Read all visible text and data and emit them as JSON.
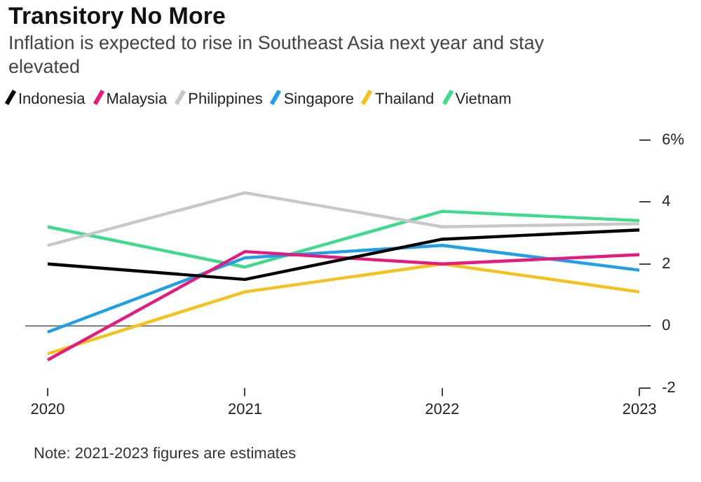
{
  "chart_data": {
    "type": "line",
    "title": "Transitory No More",
    "subtitle": "Inflation is expected to rise in Southeast Asia next year and stay elevated",
    "categories": [
      "2020",
      "2021",
      "2022",
      "2023"
    ],
    "series": [
      {
        "name": "Indonesia",
        "color": "#000000",
        "values": [
          2.0,
          1.5,
          2.8,
          3.1
        ]
      },
      {
        "name": "Malaysia",
        "color": "#e8197d",
        "values": [
          -1.1,
          2.4,
          2.0,
          2.3
        ]
      },
      {
        "name": "Philippines",
        "color": "#c8c8c8",
        "values": [
          2.6,
          4.3,
          3.2,
          3.3
        ]
      },
      {
        "name": "Singapore",
        "color": "#1ea0e6",
        "values": [
          -0.2,
          2.2,
          2.6,
          1.8
        ]
      },
      {
        "name": "Thailand",
        "color": "#f5c21b",
        "values": [
          -0.9,
          1.1,
          2.0,
          1.1
        ]
      },
      {
        "name": "Vietnam",
        "color": "#3ddc8c",
        "values": [
          3.2,
          1.9,
          3.7,
          3.4
        ]
      }
    ],
    "ylim": [
      -2,
      6
    ],
    "yticks": [
      {
        "value": 6,
        "label": "6%"
      },
      4,
      2,
      0,
      -2
    ],
    "ref_lines": [
      {
        "axis": "y",
        "value": 0,
        "color": "#777777"
      }
    ],
    "legend": "top",
    "grid": false,
    "marker": "none",
    "line_style": "solid",
    "annotations": [
      "Note: 2021-2023 figures are estimates"
    ]
  }
}
